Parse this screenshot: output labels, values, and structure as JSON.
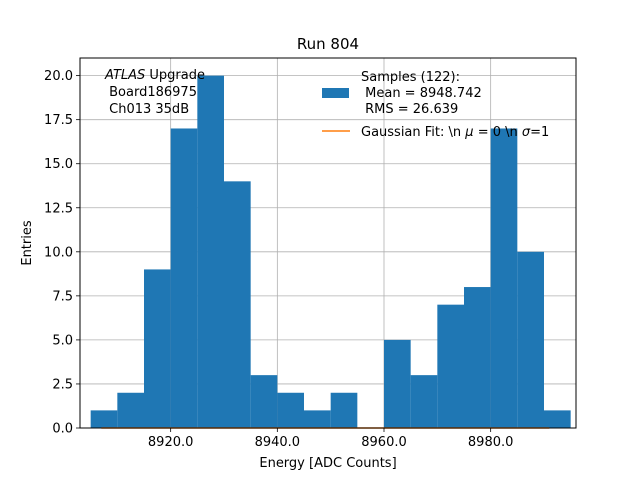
{
  "chart_data": {
    "type": "bar",
    "title": "Run 804",
    "xlabel": "Energy [ADC Counts]",
    "ylabel": "Entries",
    "xlim": [
      8903.0,
      8996.0
    ],
    "ylim": [
      0,
      21
    ],
    "grid": true,
    "bin_edges": [
      8905,
      8910,
      8915,
      8920,
      8925,
      8930,
      8935,
      8940,
      8945,
      8950,
      8955,
      8960,
      8965,
      8970,
      8975,
      8980,
      8985,
      8990,
      8995
    ],
    "counts": [
      1,
      2,
      9,
      17,
      20,
      14,
      3,
      2,
      1,
      2,
      0,
      5,
      3,
      7,
      8,
      17,
      10,
      1
    ],
    "x_ticks": [
      8920,
      8940,
      8960,
      8980
    ],
    "x_tick_labels": [
      "8920.0",
      "8940.0",
      "8960.0",
      "8980.0"
    ],
    "y_ticks": [
      0,
      2.5,
      5,
      7.5,
      10,
      12.5,
      15,
      17.5,
      20
    ],
    "y_tick_labels": [
      "0.0",
      "2.5",
      "5.0",
      "7.5",
      "10.0",
      "12.5",
      "15.0",
      "17.5",
      "20.0"
    ],
    "fit_line": {
      "x": [
        8907,
        8991
      ],
      "y": [
        0,
        0
      ]
    },
    "series_colors": {
      "hist": "#1f77b4",
      "fit": "#ff7f0e"
    },
    "legend": {
      "position": "top-right",
      "hist_label": [
        "Samples (122):",
        " Mean = 8948.742",
        " RMS = 26.639"
      ],
      "fit_label_prefix": "Gaussian Fit: \\n ",
      "fit_label_mu": "μ",
      "fit_label_mid": " = 0 \\n ",
      "fit_label_sigma": "σ",
      "fit_label_suffix": "=1"
    },
    "annotation": {
      "italic": "ATLAS",
      "after_italic": " Upgrade",
      "line2": " Board186975",
      "line3": " Ch013 35dB"
    }
  }
}
